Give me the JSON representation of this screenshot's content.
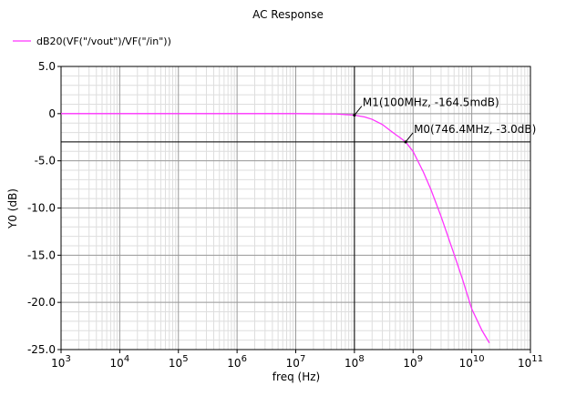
{
  "chart_data": {
    "type": "line",
    "title": "AC Response",
    "xlabel": "freq (Hz)",
    "ylabel": "Y0 (dB)",
    "x_scale": "log",
    "xlim": [
      1000,
      100000000000
    ],
    "ylim": [
      -25,
      5
    ],
    "grid": true,
    "legend_placement": "top-left",
    "x_ticks": [
      {
        "value": 1000,
        "base": "10",
        "exp": "3"
      },
      {
        "value": 10000,
        "base": "10",
        "exp": "4"
      },
      {
        "value": 100000,
        "base": "10",
        "exp": "5"
      },
      {
        "value": 1000000,
        "base": "10",
        "exp": "6"
      },
      {
        "value": 10000000,
        "base": "10",
        "exp": "7"
      },
      {
        "value": 100000000,
        "base": "10",
        "exp": "8"
      },
      {
        "value": 1000000000,
        "base": "10",
        "exp": "9"
      },
      {
        "value": 10000000000,
        "base": "10",
        "exp": "10"
      },
      {
        "value": 100000000000,
        "base": "10",
        "exp": "11"
      }
    ],
    "y_ticks": [
      {
        "value": 5,
        "label": "5.0"
      },
      {
        "value": 0,
        "label": "0"
      },
      {
        "value": -5,
        "label": "-5.0"
      },
      {
        "value": -10,
        "label": "-10.0"
      },
      {
        "value": -15,
        "label": "-15.0"
      },
      {
        "value": -20,
        "label": "-20.0"
      },
      {
        "value": -25,
        "label": "-25.0"
      }
    ],
    "series": [
      {
        "name": "dB20(VF(\"/vout\")/VF(\"/in\"))",
        "color": "#ff33ff",
        "x": [
          1000,
          10000,
          100000,
          1000000,
          10000000,
          50000000,
          100000000,
          150000000,
          200000000,
          300000000,
          400000000,
          500000000,
          600000000,
          746400000,
          1000000000,
          1500000000,
          2000000000,
          3000000000,
          5000000000,
          7000000000,
          10000000000,
          15000000000,
          20000000000
        ],
        "y": [
          0,
          0,
          0,
          0,
          0,
          -0.04,
          -0.16,
          -0.35,
          -0.6,
          -1.15,
          -1.75,
          -2.2,
          -2.55,
          -3.0,
          -4.0,
          -6.2,
          -8.0,
          -10.9,
          -14.9,
          -17.6,
          -20.7,
          -23.0,
          -24.3
        ]
      }
    ],
    "reference_lines": [
      {
        "axis": "y",
        "value": -3.0
      },
      {
        "axis": "x",
        "value": 100000000
      }
    ],
    "markers": [
      {
        "name": "M1",
        "label": "M1(100MHz, -164.5mdB)",
        "x": 100000000,
        "y": -0.1645
      },
      {
        "name": "M0",
        "label": "M0(746.4MHz, -3.0dB)",
        "x": 746400000,
        "y": -3.0
      }
    ]
  }
}
